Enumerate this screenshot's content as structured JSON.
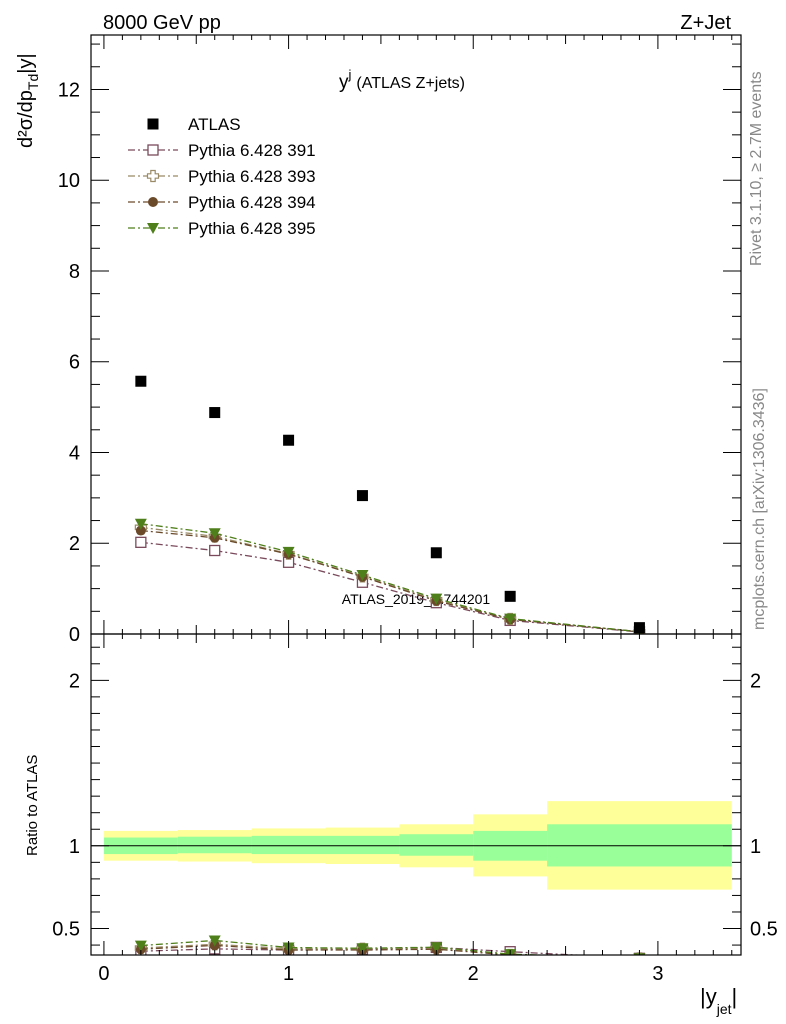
{
  "header": {
    "left": "8000 GeV pp",
    "right": "Z+Jet"
  },
  "side": {
    "top": "Rivet 3.1.10, ≥ 2.7M events",
    "bottom": "mcplots.cern.ch [arXiv:1306.3436]"
  },
  "chart_data": {
    "type": "scatter",
    "title": "y",
    "title_sup": "j",
    "subtitle": "(ATLAS Z+jets)",
    "watermark": "ATLAS_2019_I1744201",
    "xlabel": "|y",
    "xlabel_sub": "jet",
    "xlabel_end": "|",
    "ylabel": "d²σ/dp",
    "ylabel_sub": "Td",
    "ylabel_end": "|y|",
    "ratio_ylabel": "Ratio to ATLAS",
    "xlim": [
      -0.07,
      3.45
    ],
    "ylim": [
      0,
      13.2
    ],
    "ratio_ylim": [
      0.34,
      2.28
    ],
    "x_ticks": [
      {
        "v": 0,
        "label": "0"
      },
      {
        "v": 1,
        "label": "1"
      },
      {
        "v": 2,
        "label": "2"
      },
      {
        "v": 3,
        "label": "3"
      }
    ],
    "y_ticks": [
      {
        "v": 0,
        "label": "0"
      },
      {
        "v": 2,
        "label": "2"
      },
      {
        "v": 4,
        "label": "4"
      },
      {
        "v": 6,
        "label": "6"
      },
      {
        "v": 8,
        "label": "8"
      },
      {
        "v": 10,
        "label": "10"
      },
      {
        "v": 12,
        "label": "12"
      }
    ],
    "ratio_ticks": [
      {
        "v": 0.5,
        "label": "0.5"
      },
      {
        "v": 1,
        "label": "1"
      },
      {
        "v": 2,
        "label": "2"
      }
    ],
    "legend_position": "top-left",
    "bins": [
      {
        "lo": 0.0,
        "hi": 0.4
      },
      {
        "lo": 0.4,
        "hi": 0.8
      },
      {
        "lo": 0.8,
        "hi": 1.2
      },
      {
        "lo": 1.2,
        "hi": 1.6
      },
      {
        "lo": 1.6,
        "hi": 2.0
      },
      {
        "lo": 2.0,
        "hi": 2.4
      },
      {
        "lo": 2.4,
        "hi": 3.4
      }
    ],
    "band_inner": [
      [
        0.95,
        1.05
      ],
      [
        0.955,
        1.055
      ],
      [
        0.95,
        1.06
      ],
      [
        0.95,
        1.06
      ],
      [
        0.94,
        1.07
      ],
      [
        0.91,
        1.09
      ],
      [
        0.875,
        1.13
      ]
    ],
    "band_outer": [
      [
        0.91,
        1.09
      ],
      [
        0.905,
        1.095
      ],
      [
        0.895,
        1.105
      ],
      [
        0.89,
        1.11
      ],
      [
        0.87,
        1.13
      ],
      [
        0.815,
        1.19
      ],
      [
        0.735,
        1.27
      ]
    ],
    "data": {
      "name": "ATLAS",
      "x": [
        0.2,
        0.6,
        1.0,
        1.4,
        1.8,
        2.2,
        2.9
      ],
      "y": [
        5.57,
        4.88,
        4.27,
        3.05,
        1.79,
        0.83,
        0.14
      ]
    },
    "series": [
      {
        "name": "Pythia 6.428 391",
        "color": "#7a4a5c",
        "marker": "open-square",
        "x": [
          0.2,
          0.6,
          1.0,
          1.4,
          1.8,
          2.2,
          2.9
        ],
        "y": [
          2.02,
          1.84,
          1.58,
          1.14,
          0.69,
          0.3,
          0.045
        ],
        "ratio": [
          0.363,
          0.377,
          0.37,
          0.374,
          0.386,
          0.36,
          0.32
        ]
      },
      {
        "name": "Pythia 6.428 393",
        "color": "#9a8a66",
        "marker": "open-cross",
        "x": [
          0.2,
          0.6,
          1.0,
          1.4,
          1.8,
          2.2,
          2.9
        ],
        "y": [
          2.35,
          2.15,
          1.77,
          1.27,
          0.75,
          0.33,
          0.05
        ],
        "ratio": [
          0.382,
          0.405,
          0.378,
          0.378,
          0.38,
          0.34,
          0.32
        ]
      },
      {
        "name": "Pythia 6.428 394",
        "color": "#6b4a2a",
        "marker": "filled-circle",
        "x": [
          0.2,
          0.6,
          1.0,
          1.4,
          1.8,
          2.2,
          2.9
        ],
        "y": [
          2.28,
          2.12,
          1.76,
          1.26,
          0.73,
          0.32,
          0.05
        ],
        "ratio": [
          0.375,
          0.398,
          0.37,
          0.37,
          0.375,
          0.34,
          0.32
        ]
      },
      {
        "name": "Pythia 6.428 395",
        "color": "#4f7f1a",
        "marker": "filled-triangle-down",
        "x": [
          0.2,
          0.6,
          1.0,
          1.4,
          1.8,
          2.2,
          2.9
        ],
        "y": [
          2.43,
          2.22,
          1.81,
          1.3,
          0.78,
          0.34,
          0.05
        ],
        "ratio": [
          0.397,
          0.428,
          0.385,
          0.381,
          0.387,
          0.345,
          0.32
        ]
      }
    ],
    "colors": {
      "band_inner": "#99ff99",
      "band_outer": "#ffff99",
      "data": "#000000",
      "watermark": "#999999"
    }
  }
}
